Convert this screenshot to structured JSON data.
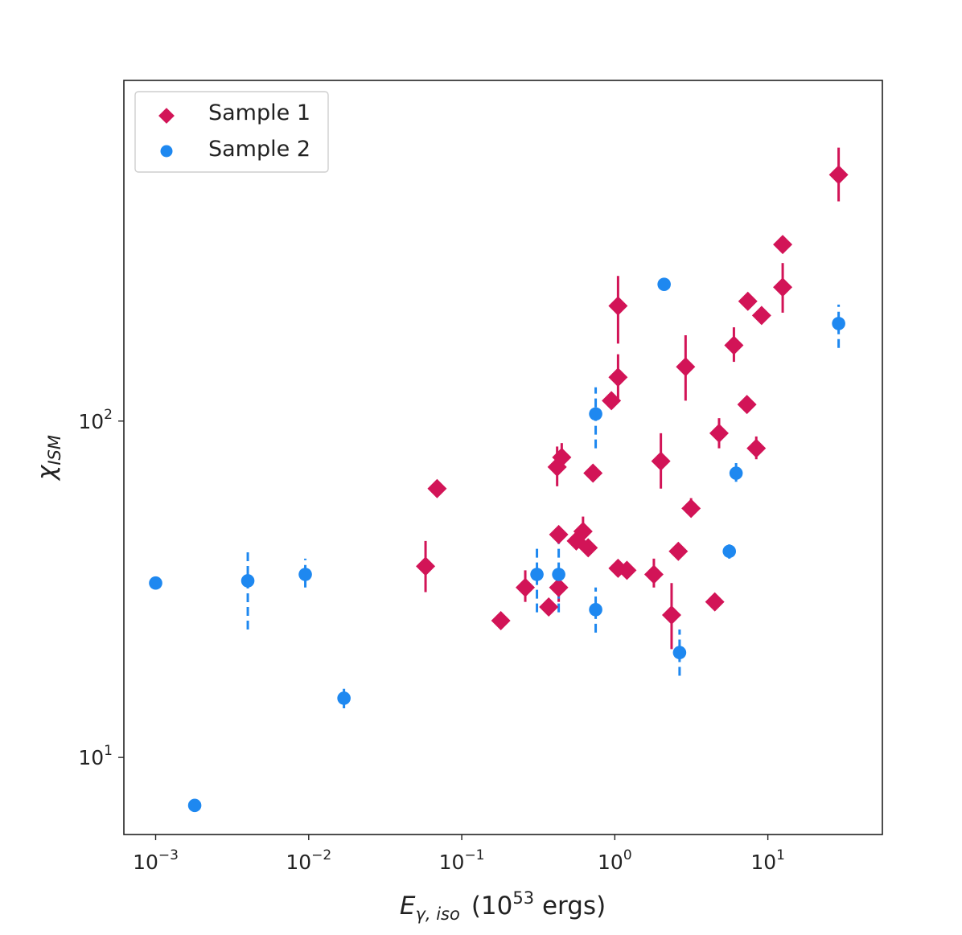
{
  "chart_data": {
    "type": "scatter",
    "xscale": "log",
    "yscale": "log",
    "xlim": [
      0.00062,
      56
    ],
    "ylim": [
      5.9,
      1030
    ],
    "xlabel": {
      "main": "E",
      "sub": "γ, iso",
      "unit_open": "(10",
      "unit_exp": "53",
      "unit_close": " ergs)"
    },
    "ylabel": {
      "main": "χ",
      "sub": "ISM"
    },
    "xticks": [
      {
        "value": 0.001,
        "base": "10",
        "exp": "−3"
      },
      {
        "value": 0.01,
        "base": "10",
        "exp": "−2"
      },
      {
        "value": 0.1,
        "base": "10",
        "exp": "−1"
      },
      {
        "value": 1,
        "base": "10",
        "exp": "0"
      },
      {
        "value": 10,
        "base": "10",
        "exp": "1"
      }
    ],
    "yticks": [
      {
        "value": 10,
        "base": "10",
        "exp": "1"
      },
      {
        "value": 100,
        "base": "10",
        "exp": "2"
      }
    ],
    "legend": {
      "position": "upper-left"
    },
    "series": [
      {
        "name": "Sample 1",
        "marker": "diamond",
        "color": "#d21457",
        "errorbar_style": "solid",
        "points": [
          {
            "x": 0.069,
            "y": 63
          },
          {
            "x": 0.058,
            "y": 37,
            "lo": 31,
            "hi": 44
          },
          {
            "x": 0.18,
            "y": 25.5
          },
          {
            "x": 0.26,
            "y": 32,
            "lo": 29,
            "hi": 36
          },
          {
            "x": 0.37,
            "y": 28
          },
          {
            "x": 0.43,
            "y": 32,
            "lo": 29,
            "hi": 36
          },
          {
            "x": 0.43,
            "y": 46
          },
          {
            "x": 0.42,
            "y": 73,
            "lo": 64,
            "hi": 84
          },
          {
            "x": 0.45,
            "y": 78,
            "lo": 72,
            "hi": 86
          },
          {
            "x": 0.56,
            "y": 44
          },
          {
            "x": 0.62,
            "y": 47,
            "lo": 42,
            "hi": 52
          },
          {
            "x": 0.67,
            "y": 42
          },
          {
            "x": 0.72,
            "y": 70
          },
          {
            "x": 0.95,
            "y": 115
          },
          {
            "x": 1.05,
            "y": 36.5
          },
          {
            "x": 1.05,
            "y": 220,
            "lo": 170,
            "hi": 270
          },
          {
            "x": 1.05,
            "y": 135,
            "lo": 115,
            "hi": 158
          },
          {
            "x": 1.2,
            "y": 36
          },
          {
            "x": 1.8,
            "y": 35,
            "lo": 32,
            "hi": 39
          },
          {
            "x": 2.0,
            "y": 76,
            "lo": 63,
            "hi": 92
          },
          {
            "x": 2.35,
            "y": 26.5,
            "lo": 21,
            "hi": 33
          },
          {
            "x": 2.6,
            "y": 41
          },
          {
            "x": 2.9,
            "y": 145,
            "lo": 115,
            "hi": 180
          },
          {
            "x": 3.15,
            "y": 55,
            "lo": 52,
            "hi": 59
          },
          {
            "x": 4.5,
            "y": 29
          },
          {
            "x": 4.8,
            "y": 92,
            "lo": 83,
            "hi": 102
          },
          {
            "x": 6.0,
            "y": 168,
            "lo": 150,
            "hi": 190
          },
          {
            "x": 7.3,
            "y": 112
          },
          {
            "x": 7.4,
            "y": 227
          },
          {
            "x": 8.4,
            "y": 83,
            "lo": 77,
            "hi": 90
          },
          {
            "x": 9.1,
            "y": 206
          },
          {
            "x": 12.5,
            "y": 335
          },
          {
            "x": 12.5,
            "y": 250,
            "lo": 210,
            "hi": 295
          },
          {
            "x": 29,
            "y": 540,
            "lo": 450,
            "hi": 650
          }
        ]
      },
      {
        "name": "Sample 2",
        "marker": "circle",
        "color": "#1e88f0",
        "errorbar_style": "dashed",
        "points": [
          {
            "x": 0.001,
            "y": 33
          },
          {
            "x": 0.0018,
            "y": 7.2,
            "lo": 6.9,
            "hi": 7.5
          },
          {
            "x": 0.004,
            "y": 33.5,
            "lo": 24,
            "hi": 42
          },
          {
            "x": 0.0095,
            "y": 35,
            "lo": 32,
            "hi": 39
          },
          {
            "x": 0.017,
            "y": 15,
            "lo": 14,
            "hi": 16
          },
          {
            "x": 0.31,
            "y": 35,
            "lo": 27,
            "hi": 43
          },
          {
            "x": 0.43,
            "y": 35,
            "lo": 27,
            "hi": 45
          },
          {
            "x": 0.75,
            "y": 27.5,
            "lo": 23.5,
            "hi": 32
          },
          {
            "x": 0.75,
            "y": 105,
            "lo": 83,
            "hi": 126
          },
          {
            "x": 2.1,
            "y": 255,
            "lo": 245,
            "hi": 265
          },
          {
            "x": 2.65,
            "y": 20.5,
            "lo": 17.5,
            "hi": 24
          },
          {
            "x": 5.6,
            "y": 41,
            "lo": 39,
            "hi": 43
          },
          {
            "x": 6.2,
            "y": 70,
            "lo": 66,
            "hi": 75
          },
          {
            "x": 29,
            "y": 195,
            "lo": 165,
            "hi": 222
          }
        ]
      }
    ]
  }
}
